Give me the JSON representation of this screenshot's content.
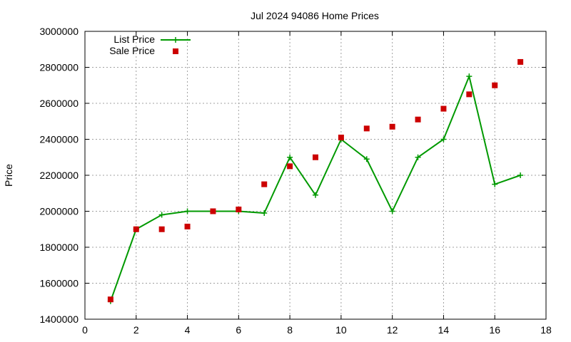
{
  "chart_data": {
    "type": "line",
    "title": "Jul 2024 94086 Home Prices",
    "xlabel": "",
    "ylabel": "Price",
    "xlim": [
      0,
      18
    ],
    "ylim": [
      1400000,
      3000000
    ],
    "xticks": [
      0,
      2,
      4,
      6,
      8,
      10,
      12,
      14,
      16,
      18
    ],
    "yticks": [
      1400000,
      1600000,
      1800000,
      2000000,
      2200000,
      2400000,
      2600000,
      2800000,
      3000000
    ],
    "grid": true,
    "legend_position": "top-left",
    "series": [
      {
        "name": "List Price",
        "style": "line+cross-markers",
        "color": "#009900",
        "x": [
          1,
          2,
          3,
          4,
          5,
          6,
          7,
          8,
          9,
          10,
          11,
          12,
          13,
          14,
          15,
          16,
          17
        ],
        "values": [
          1500000,
          1900000,
          1980000,
          2000000,
          2000000,
          2000000,
          1990000,
          2300000,
          2090000,
          2400000,
          2290000,
          2000000,
          2300000,
          2400000,
          2750000,
          2150000,
          2200000
        ]
      },
      {
        "name": "Sale Price",
        "style": "square-markers",
        "color": "#cc0000",
        "x": [
          1,
          2,
          3,
          4,
          5,
          6,
          7,
          8,
          9,
          10,
          11,
          12,
          13,
          14,
          15,
          16,
          17
        ],
        "values": [
          1510000,
          1900000,
          1900000,
          1915000,
          2000000,
          2010000,
          2150000,
          2250000,
          2300000,
          2410000,
          2460000,
          2470000,
          2510000,
          2570000,
          2650000,
          2700000,
          2830000
        ]
      }
    ]
  }
}
